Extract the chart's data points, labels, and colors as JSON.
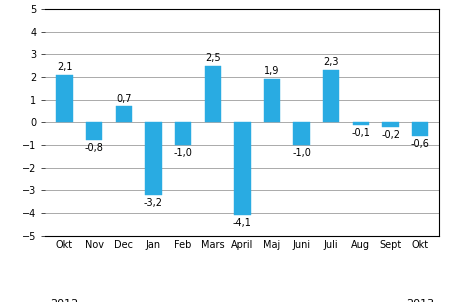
{
  "categories": [
    "Okt",
    "Nov",
    "Dec",
    "Jan",
    "Feb",
    "Mars",
    "April",
    "Maj",
    "Juni",
    "Juli",
    "Aug",
    "Sept",
    "Okt"
  ],
  "values": [
    2.1,
    -0.8,
    0.7,
    -3.2,
    -1.0,
    2.5,
    -4.1,
    1.9,
    -1.0,
    2.3,
    -0.1,
    -0.2,
    -0.6
  ],
  "bar_color": "#29ABE2",
  "ylim": [
    -5,
    5
  ],
  "yticks": [
    -5,
    -4,
    -3,
    -2,
    -1,
    0,
    1,
    2,
    3,
    4,
    5
  ],
  "background_color": "#ffffff",
  "grid_color": "#888888",
  "label_fontsize": 7.0,
  "tick_fontsize": 7.0,
  "year_fontsize": 8.0,
  "bar_width": 0.55
}
